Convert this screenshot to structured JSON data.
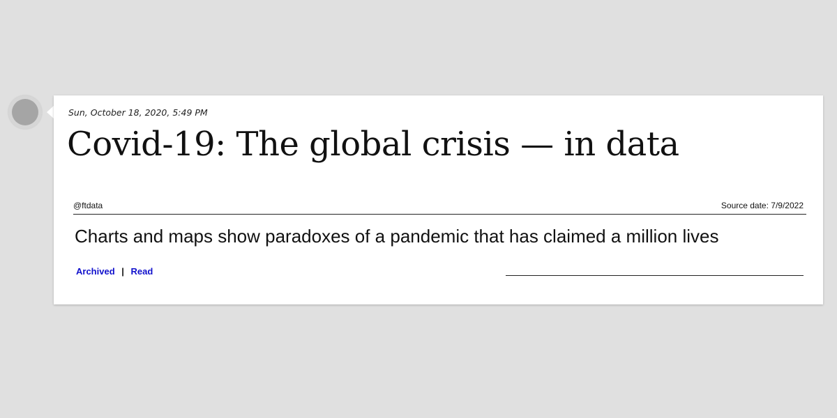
{
  "post": {
    "timestamp": "Sun, October 18, 2020, 5:49 PM",
    "title": "Covid-19: The global crisis — in data"
  },
  "source": {
    "handle": "@ftdata",
    "date_label": "Source date:",
    "date_value": "7/9/2022"
  },
  "summary": "Charts and maps show paradoxes of a pandemic that has claimed a million lives",
  "links": {
    "archived": "Archived",
    "separator": "|",
    "read": "Read"
  },
  "colors": {
    "background": "#e0e0e0",
    "card": "#ffffff",
    "link": "#1010cc",
    "text": "#111111"
  }
}
